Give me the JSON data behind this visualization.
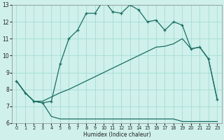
{
  "xlabel": "Humidex (Indice chaleur)",
  "bg_color": "#cff0eb",
  "grid_color": "#9dd8d0",
  "line_color": "#1a6e64",
  "xlim": [
    -0.5,
    23.5
  ],
  "ylim": [
    6,
    13
  ],
  "xticks": [
    0,
    1,
    2,
    3,
    4,
    5,
    6,
    7,
    8,
    9,
    10,
    11,
    12,
    13,
    14,
    15,
    16,
    17,
    18,
    19,
    20,
    21,
    22,
    23
  ],
  "yticks": [
    6,
    7,
    8,
    9,
    10,
    11,
    12,
    13
  ],
  "curve1_x": [
    0,
    1,
    2,
    3,
    4,
    5,
    6,
    7,
    8,
    9,
    10,
    11,
    12,
    13,
    14,
    15,
    16,
    17,
    18,
    19,
    20,
    21,
    22,
    23
  ],
  "curve1_y": [
    8.5,
    7.8,
    7.3,
    7.2,
    7.3,
    9.5,
    11.0,
    11.5,
    12.5,
    12.5,
    13.3,
    12.6,
    12.5,
    13.0,
    12.7,
    12.0,
    12.1,
    11.5,
    12.0,
    11.8,
    10.4,
    10.5,
    9.8,
    7.4
  ],
  "curve2_x": [
    0,
    1,
    2,
    3,
    4,
    5,
    6,
    7,
    8,
    9,
    10,
    11,
    12,
    13,
    14,
    15,
    16,
    17,
    18,
    19,
    20,
    21,
    22,
    23
  ],
  "curve2_y": [
    8.5,
    7.8,
    7.3,
    7.2,
    6.4,
    6.25,
    6.25,
    6.25,
    6.25,
    6.25,
    6.25,
    6.25,
    6.25,
    6.25,
    6.25,
    6.25,
    6.25,
    6.25,
    6.25,
    6.1,
    6.1,
    6.1,
    6.1,
    6.1
  ],
  "curve3_x": [
    0,
    1,
    2,
    3,
    4,
    5,
    6,
    7,
    8,
    9,
    10,
    11,
    12,
    13,
    14,
    15,
    16,
    17,
    18,
    19,
    20,
    21,
    22,
    23
  ],
  "curve3_y": [
    8.5,
    7.8,
    7.3,
    7.3,
    7.55,
    7.8,
    8.0,
    8.25,
    8.5,
    8.75,
    9.0,
    9.25,
    9.5,
    9.75,
    10.0,
    10.25,
    10.5,
    10.55,
    10.7,
    11.0,
    10.4,
    10.5,
    9.8,
    7.4
  ]
}
